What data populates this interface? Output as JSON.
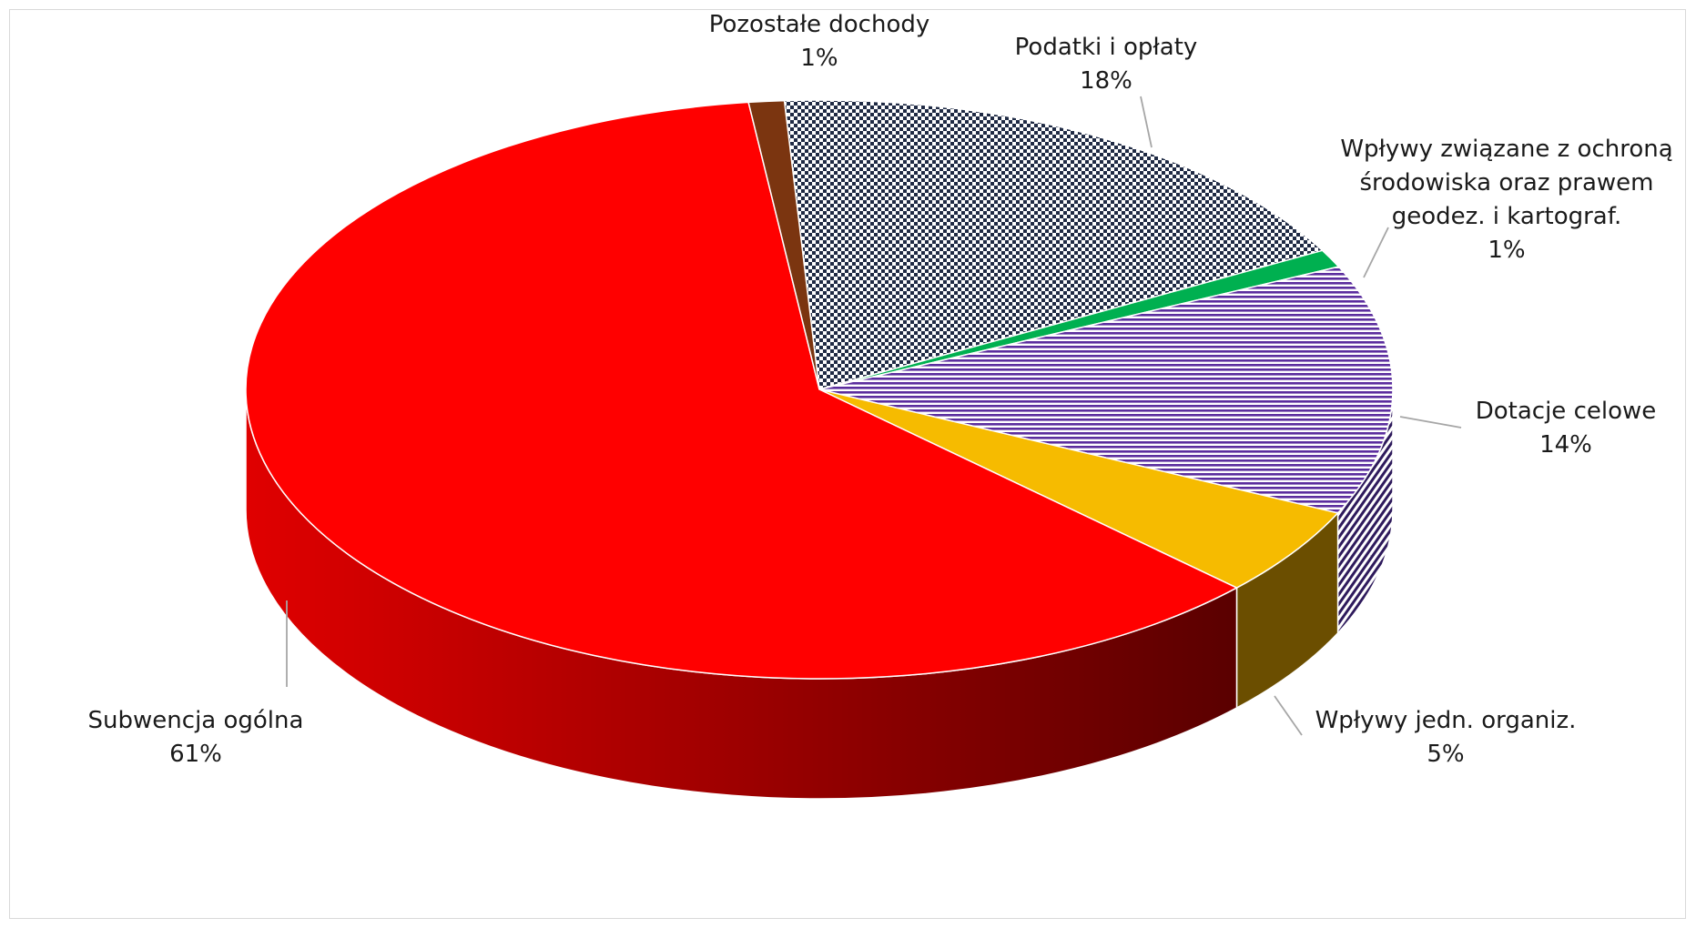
{
  "chart_data": {
    "type": "pie",
    "style": "3d-exploded-none",
    "title": "",
    "start_angle_deg": -3.5,
    "direction": "clockwise",
    "slices": [
      {
        "label": "Podatki i opłaty",
        "lines": [
          "Podatki i opłaty"
        ],
        "value": 18,
        "pct_label": "18%",
        "color": "#1f2a44",
        "pattern": "checker"
      },
      {
        "label": "Wpływy związane z ochroną środowiska oraz prawem geodez. i kartograf.",
        "lines": [
          "Wpływy związane z ochroną",
          "środowiska oraz prawem",
          "geodez. i kartograf."
        ],
        "value": 1,
        "pct_label": "1%",
        "color": "#00b050",
        "pattern": "solid"
      },
      {
        "label": "Dotacje celowe",
        "lines": [
          "Dotacje celowe"
        ],
        "value": 14,
        "pct_label": "14%",
        "color": "#5b2d9e",
        "pattern": "hstripe"
      },
      {
        "label": "Wpływy jedn. organiz.",
        "lines": [
          "Wpływy jedn. organiz."
        ],
        "value": 5,
        "pct_label": "5%",
        "color": "#f6bb00",
        "pattern": "solid"
      },
      {
        "label": "Subwencja ogólna",
        "lines": [
          "Subwencja ogólna"
        ],
        "value": 61,
        "pct_label": "61%",
        "color": "#ff0000",
        "pattern": "solid"
      },
      {
        "label": "Pozostałe dochody",
        "lines": [
          "Pozostałe dochody"
        ],
        "value": 1,
        "pct_label": "1%",
        "color": "#7b3510",
        "pattern": "solid"
      }
    ],
    "legend": "none",
    "grid": false
  }
}
